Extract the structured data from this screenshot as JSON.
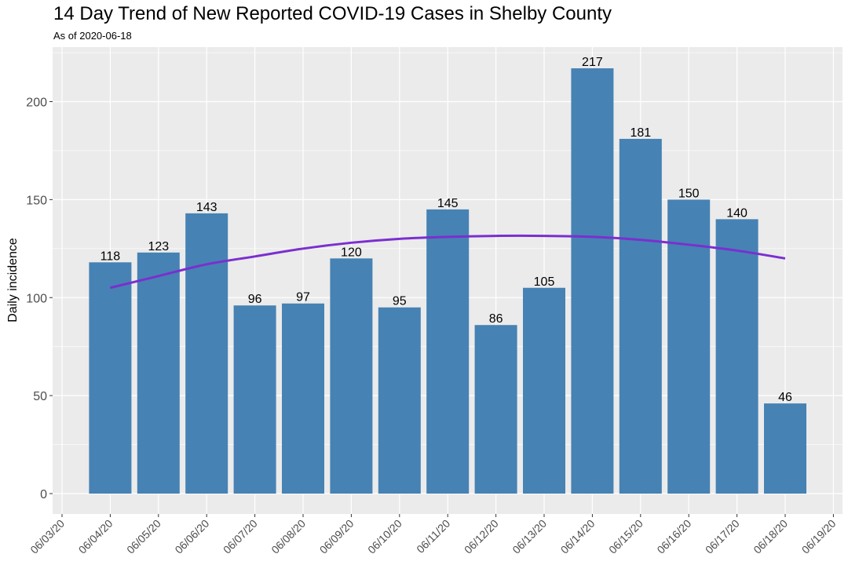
{
  "title": "14 Day Trend of New Reported COVID-19 Cases in Shelby County",
  "subtitle": "As of 2020-06-18",
  "colors": {
    "panel": "#ebebeb",
    "grid_major": "#ffffff",
    "bar": "#4682b4",
    "trend": "#7b2fcf",
    "tick_text": "#4d4d4d"
  },
  "chart_data": {
    "type": "bar",
    "ylabel": "Daily incidence",
    "xlabel": "",
    "ylim": [
      -10,
      226
    ],
    "yticks": [
      0,
      50,
      100,
      150,
      200
    ],
    "x_ticks": [
      "06/03/20",
      "06/04/20",
      "06/05/20",
      "06/06/20",
      "06/07/20",
      "06/08/20",
      "06/09/20",
      "06/10/20",
      "06/11/20",
      "06/12/20",
      "06/13/20",
      "06/14/20",
      "06/15/20",
      "06/16/20",
      "06/17/20",
      "06/18/20",
      "06/19/20"
    ],
    "categories": [
      "06/04/20",
      "06/05/20",
      "06/06/20",
      "06/07/20",
      "06/08/20",
      "06/09/20",
      "06/10/20",
      "06/11/20",
      "06/12/20",
      "06/13/20",
      "06/14/20",
      "06/15/20",
      "06/16/20",
      "06/17/20",
      "06/18/20"
    ],
    "values": [
      118,
      123,
      143,
      96,
      97,
      120,
      95,
      145,
      86,
      105,
      217,
      181,
      150,
      140,
      46
    ],
    "trend": {
      "x": [
        "06/04/20",
        "06/05/20",
        "06/06/20",
        "06/07/20",
        "06/08/20",
        "06/09/20",
        "06/10/20",
        "06/11/20",
        "06/12/20",
        "06/13/20",
        "06/14/20",
        "06/15/20",
        "06/16/20",
        "06/17/20",
        "06/18/20"
      ],
      "values": [
        105,
        111,
        117,
        121,
        125,
        128,
        130,
        131,
        131.5,
        131.5,
        131,
        129.5,
        127,
        124,
        120
      ]
    },
    "grid": true
  }
}
